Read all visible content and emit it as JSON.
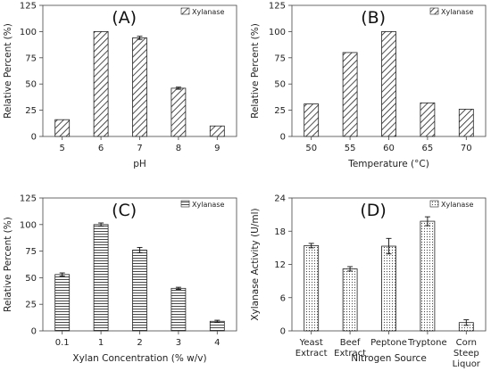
{
  "chart_data": [
    {
      "type": "bar",
      "panel_label": "(A)",
      "legend": [
        "Xylanase"
      ],
      "legend_position": "top-right",
      "pattern": "diagonal",
      "categories": [
        "5",
        "6",
        "7",
        "8",
        "9"
      ],
      "series": [
        {
          "name": "Xylanase",
          "values": [
            16,
            100,
            94,
            46,
            10
          ],
          "errors": [
            0,
            0,
            1.5,
            1,
            0
          ]
        }
      ],
      "xlabel": "pH",
      "ylabel": "Relative Percent (%)",
      "ylim": [
        0,
        125
      ],
      "yticks": [
        "0",
        "25",
        "50",
        "75",
        "100",
        "125"
      ]
    },
    {
      "type": "bar",
      "panel_label": "(B)",
      "legend": [
        "Xylanase"
      ],
      "legend_position": "top-right",
      "pattern": "diagonal",
      "categories": [
        "50",
        "55",
        "60",
        "65",
        "70"
      ],
      "series": [
        {
          "name": "Xylanase",
          "values": [
            31,
            80,
            100,
            32,
            26
          ],
          "errors": [
            0,
            0,
            0,
            0,
            0
          ]
        }
      ],
      "xlabel": "Temperature (°C)",
      "ylabel": "Relative Percent (%)",
      "ylim": [
        0,
        125
      ],
      "yticks": [
        "0",
        "25",
        "50",
        "75",
        "100",
        "125"
      ]
    },
    {
      "type": "bar",
      "panel_label": "(C)",
      "legend": [
        "Xylanase"
      ],
      "legend_position": "top-right",
      "pattern": "horizontal",
      "categories": [
        "0.1",
        "1",
        "2",
        "3",
        "4"
      ],
      "series": [
        {
          "name": "Xylanase",
          "values": [
            53,
            100,
            76,
            40,
            9
          ],
          "errors": [
            1.5,
            1.5,
            2.5,
            1,
            1
          ]
        }
      ],
      "xlabel": "Xylan Concentration (% w/v)",
      "ylabel": "Relative Percent (%)",
      "ylim": [
        0,
        125
      ],
      "yticks": [
        "0",
        "25",
        "50",
        "75",
        "100",
        "125"
      ]
    },
    {
      "type": "bar",
      "panel_label": "(D)",
      "legend": [
        "Xylanase"
      ],
      "legend_position": "top-right",
      "pattern": "dotted",
      "categories": [
        "Yeast\nExtract",
        "Beef\nExtract",
        "Peptone",
        "Tryptone",
        "Corn\nSteep\nLiquor"
      ],
      "series": [
        {
          "name": "Xylanase",
          "values": [
            15.4,
            11.2,
            15.3,
            19.8,
            1.5
          ],
          "errors": [
            0.4,
            0.4,
            1.4,
            0.8,
            0.5
          ]
        }
      ],
      "xlabel": "Nitrogen Source",
      "ylabel": "Xylanase Activity (U/ml)",
      "ylim": [
        0,
        24
      ],
      "yticks": [
        "0",
        "6",
        "12",
        "18",
        "24"
      ]
    }
  ]
}
